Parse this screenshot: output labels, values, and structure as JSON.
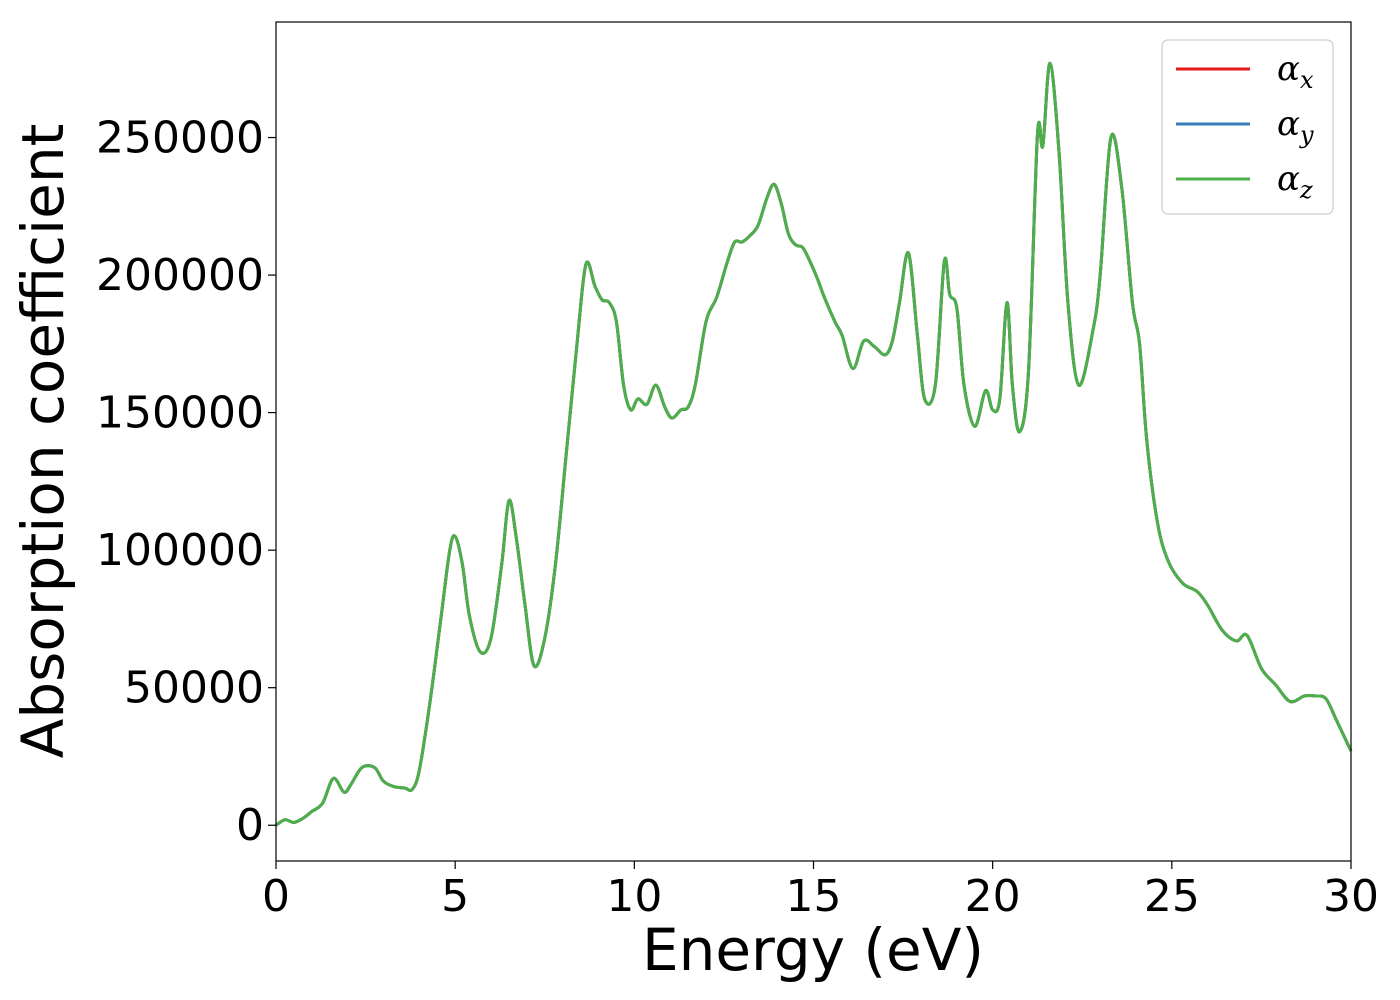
{
  "chart_data": {
    "type": "line",
    "title": "",
    "xlabel": "Energy (eV)",
    "ylabel": "Absorption coefficient",
    "xlim": [
      0,
      30
    ],
    "ylim": [
      -13000,
      292000
    ],
    "xticks": [
      0,
      5,
      10,
      15,
      20,
      25,
      30
    ],
    "xtick_labels": [
      "0",
      "5",
      "10",
      "15",
      "20",
      "25",
      "30"
    ],
    "yticks": [
      0,
      50000,
      100000,
      150000,
      200000,
      250000
    ],
    "ytick_labels": [
      "0",
      "50000",
      "100000",
      "150000",
      "200000",
      "250000"
    ],
    "grid": false,
    "legend_position": "top-right",
    "x": [
      0,
      0.25,
      0.5,
      0.75,
      1.0,
      1.3,
      1.6,
      1.9,
      2.1,
      2.4,
      2.75,
      3.0,
      3.3,
      3.6,
      3.8,
      4.0,
      4.3,
      4.6,
      4.85,
      5.0,
      5.2,
      5.4,
      5.7,
      6.0,
      6.3,
      6.5,
      6.7,
      6.95,
      7.2,
      7.5,
      7.8,
      8.1,
      8.4,
      8.65,
      8.9,
      9.1,
      9.3,
      9.5,
      9.7,
      9.9,
      10.1,
      10.35,
      10.6,
      10.85,
      11.05,
      11.3,
      11.5,
      11.7,
      12.0,
      12.3,
      12.6,
      12.8,
      13.0,
      13.2,
      13.45,
      13.7,
      13.9,
      14.1,
      14.3,
      14.5,
      14.7,
      14.9,
      15.1,
      15.3,
      15.6,
      15.8,
      16.1,
      16.4,
      16.7,
      17.0,
      17.2,
      17.4,
      17.65,
      17.9,
      18.1,
      18.4,
      18.65,
      18.8,
      19.0,
      19.2,
      19.5,
      19.8,
      20.0,
      20.2,
      20.4,
      20.55,
      20.75,
      21.0,
      21.25,
      21.4,
      21.6,
      21.85,
      22.1,
      22.4,
      22.8,
      23.0,
      23.3,
      23.6,
      23.9,
      24.1,
      24.3,
      24.6,
      24.9,
      25.3,
      25.7,
      26.0,
      26.4,
      26.8,
      27.1,
      27.5,
      27.9,
      28.3,
      28.7,
      29.0,
      29.3,
      29.6,
      30.0
    ],
    "series": [
      {
        "name": "αx",
        "color": "#e41a1c",
        "values": [
          0,
          2000,
          1000,
          2500,
          5000,
          8000,
          17000,
          12000,
          15000,
          21000,
          21000,
          16000,
          14000,
          13500,
          13000,
          20000,
          45000,
          75000,
          100000,
          105000,
          95000,
          76000,
          63000,
          68000,
          95000,
          118000,
          105000,
          80000,
          58000,
          68000,
          95000,
          135000,
          175000,
          204000,
          196000,
          191000,
          190000,
          183000,
          160000,
          151000,
          155000,
          153000,
          160000,
          152000,
          148000,
          151000,
          152000,
          160000,
          183000,
          192000,
          205000,
          212000,
          212000,
          214000,
          218000,
          228000,
          233000,
          226000,
          215000,
          211000,
          210000,
          205000,
          199000,
          192000,
          183000,
          178000,
          166000,
          176000,
          174000,
          171000,
          176000,
          190000,
          208000,
          178000,
          155000,
          160000,
          205000,
          193000,
          188000,
          160000,
          145000,
          158000,
          151000,
          155000,
          190000,
          160000,
          143000,
          165000,
          251000,
          247000,
          277000,
          245000,
          190000,
          160000,
          180000,
          200000,
          250000,
          232000,
          190000,
          175000,
          140000,
          110000,
          96000,
          88000,
          85000,
          80000,
          71000,
          67000,
          69000,
          57000,
          51000,
          45000,
          47000,
          47000,
          46000,
          38000,
          27000
        ]
      },
      {
        "name": "αy",
        "color": "#377eb8",
        "values": [
          0,
          2000,
          1000,
          2500,
          5000,
          8000,
          17000,
          12000,
          15000,
          21000,
          21000,
          16000,
          14000,
          13500,
          13000,
          20000,
          45000,
          75000,
          100000,
          105000,
          95000,
          76000,
          63000,
          68000,
          95000,
          118000,
          105000,
          80000,
          58000,
          68000,
          95000,
          135000,
          175000,
          204000,
          196000,
          191000,
          190000,
          183000,
          160000,
          151000,
          155000,
          153000,
          160000,
          152000,
          148000,
          151000,
          152000,
          160000,
          183000,
          192000,
          205000,
          212000,
          212000,
          214000,
          218000,
          228000,
          233000,
          226000,
          215000,
          211000,
          210000,
          205000,
          199000,
          192000,
          183000,
          178000,
          166000,
          176000,
          174000,
          171000,
          176000,
          190000,
          208000,
          178000,
          155000,
          160000,
          205000,
          193000,
          188000,
          160000,
          145000,
          158000,
          151000,
          155000,
          190000,
          160000,
          143000,
          165000,
          251000,
          247000,
          277000,
          245000,
          190000,
          160000,
          180000,
          200000,
          250000,
          232000,
          190000,
          175000,
          140000,
          110000,
          96000,
          88000,
          85000,
          80000,
          71000,
          67000,
          69000,
          57000,
          51000,
          45000,
          47000,
          47000,
          46000,
          38000,
          27000
        ]
      },
      {
        "name": "αz",
        "color": "#4daf4a",
        "values": [
          0,
          2000,
          1000,
          2500,
          5000,
          8000,
          17000,
          12000,
          15000,
          21000,
          21000,
          16000,
          14000,
          13500,
          13000,
          20000,
          45000,
          75000,
          100000,
          105000,
          95000,
          76000,
          63000,
          68000,
          95000,
          118000,
          105000,
          80000,
          58000,
          68000,
          95000,
          135000,
          175000,
          204000,
          196000,
          191000,
          190000,
          183000,
          160000,
          151000,
          155000,
          153000,
          160000,
          152000,
          148000,
          151000,
          152000,
          160000,
          183000,
          192000,
          205000,
          212000,
          212000,
          214000,
          218000,
          228000,
          233000,
          226000,
          215000,
          211000,
          210000,
          205000,
          199000,
          192000,
          183000,
          178000,
          166000,
          176000,
          174000,
          171000,
          176000,
          190000,
          208000,
          178000,
          155000,
          160000,
          205000,
          193000,
          188000,
          160000,
          145000,
          158000,
          151000,
          155000,
          190000,
          160000,
          143000,
          165000,
          251000,
          247000,
          277000,
          245000,
          190000,
          160000,
          180000,
          200000,
          250000,
          232000,
          190000,
          175000,
          140000,
          110000,
          96000,
          88000,
          85000,
          80000,
          71000,
          67000,
          69000,
          57000,
          51000,
          45000,
          47000,
          47000,
          46000,
          38000,
          27000
        ]
      }
    ]
  }
}
